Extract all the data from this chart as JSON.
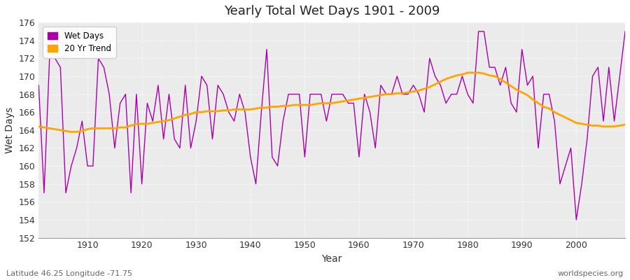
{
  "title": "Yearly Total Wet Days 1901 - 2009",
  "xlabel": "Year",
  "ylabel": "Wet Days",
  "subtitle": "Latitude 46.25 Longitude -71.75",
  "watermark": "worldspecies.org",
  "wet_days_color": "#AA00AA",
  "trend_color": "#FFA500",
  "background_color": "#FFFFFF",
  "plot_bg_color": "#EBEBEB",
  "ylim": [
    152,
    176
  ],
  "xlim": [
    1901,
    2009
  ],
  "years": [
    1901,
    1902,
    1903,
    1904,
    1905,
    1906,
    1907,
    1908,
    1909,
    1910,
    1911,
    1912,
    1913,
    1914,
    1915,
    1916,
    1917,
    1918,
    1919,
    1920,
    1921,
    1922,
    1923,
    1924,
    1925,
    1926,
    1927,
    1928,
    1929,
    1930,
    1931,
    1932,
    1933,
    1934,
    1935,
    1936,
    1937,
    1938,
    1939,
    1940,
    1941,
    1942,
    1943,
    1944,
    1945,
    1946,
    1947,
    1948,
    1949,
    1950,
    1951,
    1952,
    1953,
    1954,
    1955,
    1956,
    1957,
    1958,
    1959,
    1960,
    1961,
    1962,
    1963,
    1964,
    1965,
    1966,
    1967,
    1968,
    1969,
    1970,
    1971,
    1972,
    1973,
    1974,
    1975,
    1976,
    1977,
    1978,
    1979,
    1980,
    1981,
    1982,
    1983,
    1984,
    1985,
    1986,
    1987,
    1988,
    1989,
    1990,
    1991,
    1992,
    1993,
    1994,
    1995,
    1996,
    1997,
    1998,
    1999,
    2000,
    2001,
    2002,
    2003,
    2004,
    2005,
    2006,
    2007,
    2008,
    2009
  ],
  "wet_days": [
    169,
    157,
    172,
    172,
    171,
    157,
    160,
    162,
    165,
    160,
    160,
    172,
    171,
    168,
    162,
    167,
    168,
    157,
    168,
    158,
    167,
    165,
    169,
    163,
    168,
    163,
    162,
    169,
    162,
    165,
    170,
    169,
    163,
    169,
    168,
    166,
    165,
    168,
    166,
    161,
    158,
    166,
    173,
    161,
    160,
    165,
    168,
    168,
    168,
    161,
    168,
    168,
    168,
    165,
    168,
    168,
    168,
    167,
    167,
    161,
    168,
    166,
    162,
    169,
    168,
    168,
    170,
    168,
    168,
    169,
    168,
    166,
    172,
    170,
    169,
    167,
    168,
    168,
    170,
    168,
    167,
    175,
    175,
    171,
    171,
    169,
    171,
    167,
    166,
    173,
    169,
    170,
    162,
    168,
    168,
    165,
    158,
    160,
    162,
    154,
    158,
    163,
    170,
    171,
    165,
    171,
    165,
    170,
    175
  ],
  "trend": [
    164.4,
    164.3,
    164.2,
    164.1,
    164.0,
    163.9,
    163.8,
    163.8,
    163.9,
    164.1,
    164.2,
    164.2,
    164.2,
    164.2,
    164.2,
    164.3,
    164.3,
    164.5,
    164.7,
    164.7,
    164.7,
    164.8,
    164.9,
    165.0,
    165.1,
    165.3,
    165.5,
    165.7,
    165.8,
    166.0,
    166.0,
    166.1,
    166.1,
    166.1,
    166.2,
    166.2,
    166.3,
    166.3,
    166.3,
    166.3,
    166.4,
    166.5,
    166.5,
    166.6,
    166.6,
    166.7,
    166.7,
    166.8,
    166.8,
    166.8,
    166.8,
    166.9,
    167.0,
    167.0,
    167.0,
    167.1,
    167.2,
    167.3,
    167.4,
    167.5,
    167.6,
    167.7,
    167.8,
    167.9,
    168.0,
    168.0,
    168.1,
    168.1,
    168.2,
    168.3,
    168.4,
    168.6,
    168.8,
    169.1,
    169.4,
    169.7,
    169.9,
    170.1,
    170.2,
    170.4,
    170.4,
    170.4,
    170.3,
    170.1,
    170.0,
    169.7,
    169.3,
    168.9,
    168.5,
    168.2,
    167.9,
    167.4,
    167.0,
    166.6,
    166.4,
    166.0,
    165.7,
    165.4,
    165.1,
    164.8,
    164.7,
    164.6,
    164.5,
    164.5,
    164.4,
    164.4,
    164.4,
    164.5,
    164.6
  ]
}
